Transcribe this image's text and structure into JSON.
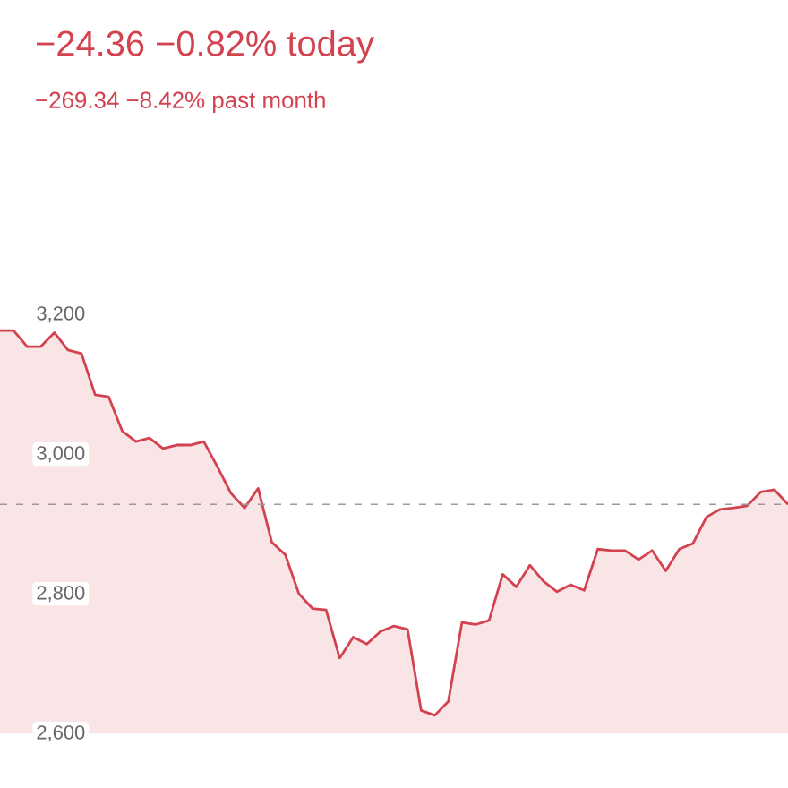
{
  "chart_data": {
    "type": "area",
    "title": "−24.36  −0.82%  today",
    "subtitle": "−269.34  −8.42%  past month",
    "categories": [
      null,
      null,
      null,
      null,
      null,
      null,
      null,
      null,
      null,
      null,
      null,
      null,
      null,
      null,
      null,
      null,
      null,
      null,
      null,
      null,
      null,
      null,
      null,
      null,
      null,
      null,
      null,
      null,
      null,
      null,
      null,
      null,
      null,
      null,
      null,
      null,
      null,
      null,
      null,
      null,
      null,
      null,
      null,
      null,
      null,
      null,
      null,
      null,
      null,
      null,
      null,
      null,
      null,
      null,
      null,
      null,
      null,
      null,
      null
    ],
    "values": [
      3177,
      3177,
      3154,
      3154,
      3174,
      3149,
      3144,
      3085,
      3082,
      3033,
      3018,
      3023,
      3008,
      3013,
      3013,
      3018,
      2982,
      2944,
      2923,
      2951,
      2874,
      2856,
      2800,
      2779,
      2777,
      2708,
      2738,
      2728,
      2746,
      2754,
      2749,
      2633,
      2626,
      2646,
      2759,
      2756,
      2762,
      2828,
      2810,
      2841,
      2818,
      2803,
      2813,
      2805,
      2864,
      2862,
      2862,
      2849,
      2862,
      2833,
      2864,
      2872,
      2910,
      2921,
      2923,
      2926,
      2946,
      2949,
      2928
    ],
    "color": "#d2424f",
    "ylim": [
      2600,
      3200
    ],
    "yticks": [
      {
        "value": 2600,
        "label": "2,600"
      },
      {
        "value": 2800,
        "label": "2,800"
      },
      {
        "value": 3000,
        "label": "3,000"
      },
      {
        "value": 3200,
        "label": "3,200"
      }
    ],
    "tick_labels": "y",
    "ref_lines": [
      {
        "axis": "y",
        "value": 2928,
        "color": "#9a9a9a",
        "line_style": "dashed"
      }
    ]
  }
}
